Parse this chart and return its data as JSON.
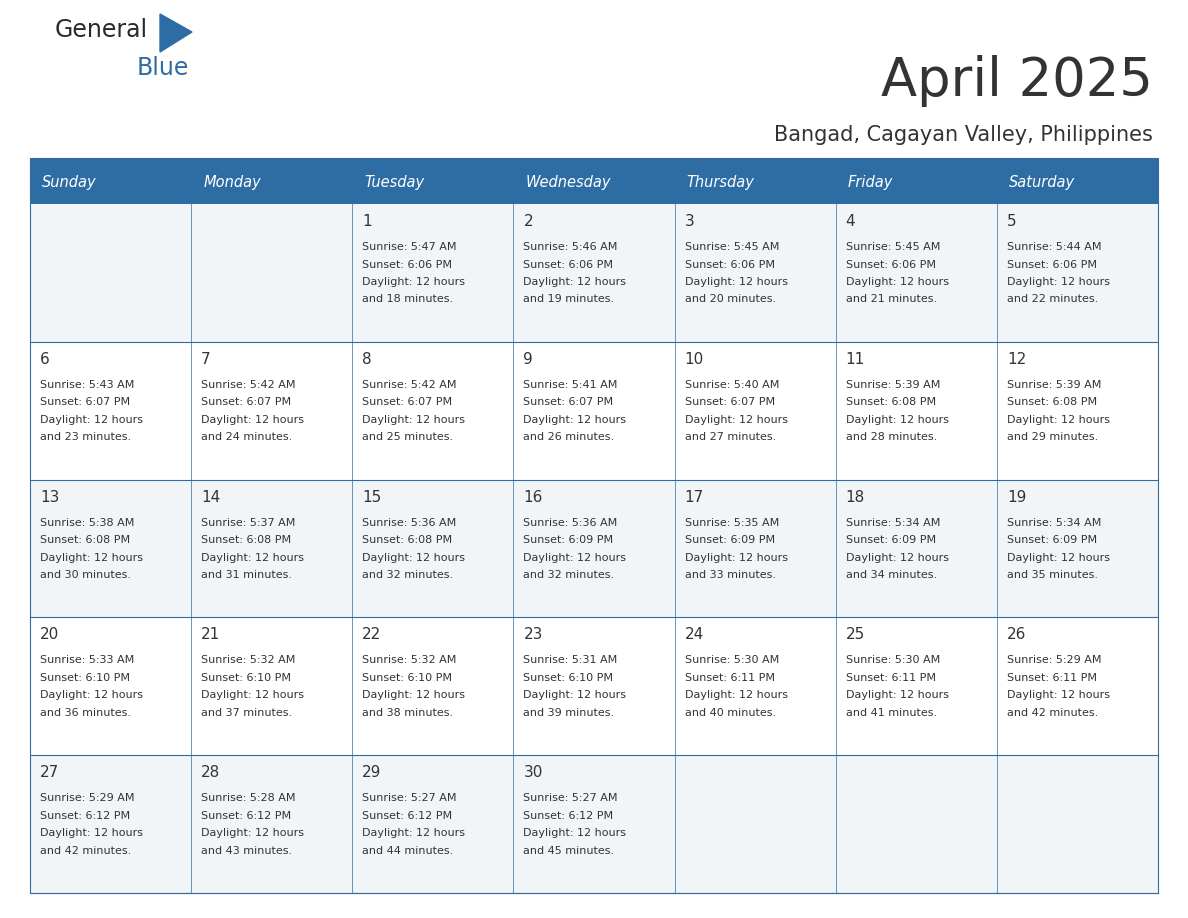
{
  "title": "April 2025",
  "subtitle": "Bangad, Cagayan Valley, Philippines",
  "header_color": "#2E6DA4",
  "header_text_color": "#FFFFFF",
  "cell_bg_even": "#F2F5F8",
  "cell_bg_odd": "#FFFFFF",
  "border_color": "#2E6DA4",
  "text_color": "#333333",
  "days_of_week": [
    "Sunday",
    "Monday",
    "Tuesday",
    "Wednesday",
    "Thursday",
    "Friday",
    "Saturday"
  ],
  "calendar_data": [
    [
      {
        "day": "",
        "sunrise": "",
        "sunset": "",
        "daylight_min": ""
      },
      {
        "day": "",
        "sunrise": "",
        "sunset": "",
        "daylight_min": ""
      },
      {
        "day": "1",
        "sunrise": "5:47 AM",
        "sunset": "6:06 PM",
        "daylight_min": "18 minutes."
      },
      {
        "day": "2",
        "sunrise": "5:46 AM",
        "sunset": "6:06 PM",
        "daylight_min": "19 minutes."
      },
      {
        "day": "3",
        "sunrise": "5:45 AM",
        "sunset": "6:06 PM",
        "daylight_min": "20 minutes."
      },
      {
        "day": "4",
        "sunrise": "5:45 AM",
        "sunset": "6:06 PM",
        "daylight_min": "21 minutes."
      },
      {
        "day": "5",
        "sunrise": "5:44 AM",
        "sunset": "6:06 PM",
        "daylight_min": "22 minutes."
      }
    ],
    [
      {
        "day": "6",
        "sunrise": "5:43 AM",
        "sunset": "6:07 PM",
        "daylight_min": "23 minutes."
      },
      {
        "day": "7",
        "sunrise": "5:42 AM",
        "sunset": "6:07 PM",
        "daylight_min": "24 minutes."
      },
      {
        "day": "8",
        "sunrise": "5:42 AM",
        "sunset": "6:07 PM",
        "daylight_min": "25 minutes."
      },
      {
        "day": "9",
        "sunrise": "5:41 AM",
        "sunset": "6:07 PM",
        "daylight_min": "26 minutes."
      },
      {
        "day": "10",
        "sunrise": "5:40 AM",
        "sunset": "6:07 PM",
        "daylight_min": "27 minutes."
      },
      {
        "day": "11",
        "sunrise": "5:39 AM",
        "sunset": "6:08 PM",
        "daylight_min": "28 minutes."
      },
      {
        "day": "12",
        "sunrise": "5:39 AM",
        "sunset": "6:08 PM",
        "daylight_min": "29 minutes."
      }
    ],
    [
      {
        "day": "13",
        "sunrise": "5:38 AM",
        "sunset": "6:08 PM",
        "daylight_min": "30 minutes."
      },
      {
        "day": "14",
        "sunrise": "5:37 AM",
        "sunset": "6:08 PM",
        "daylight_min": "31 minutes."
      },
      {
        "day": "15",
        "sunrise": "5:36 AM",
        "sunset": "6:08 PM",
        "daylight_min": "32 minutes."
      },
      {
        "day": "16",
        "sunrise": "5:36 AM",
        "sunset": "6:09 PM",
        "daylight_min": "32 minutes."
      },
      {
        "day": "17",
        "sunrise": "5:35 AM",
        "sunset": "6:09 PM",
        "daylight_min": "33 minutes."
      },
      {
        "day": "18",
        "sunrise": "5:34 AM",
        "sunset": "6:09 PM",
        "daylight_min": "34 minutes."
      },
      {
        "day": "19",
        "sunrise": "5:34 AM",
        "sunset": "6:09 PM",
        "daylight_min": "35 minutes."
      }
    ],
    [
      {
        "day": "20",
        "sunrise": "5:33 AM",
        "sunset": "6:10 PM",
        "daylight_min": "36 minutes."
      },
      {
        "day": "21",
        "sunrise": "5:32 AM",
        "sunset": "6:10 PM",
        "daylight_min": "37 minutes."
      },
      {
        "day": "22",
        "sunrise": "5:32 AM",
        "sunset": "6:10 PM",
        "daylight_min": "38 minutes."
      },
      {
        "day": "23",
        "sunrise": "5:31 AM",
        "sunset": "6:10 PM",
        "daylight_min": "39 minutes."
      },
      {
        "day": "24",
        "sunrise": "5:30 AM",
        "sunset": "6:11 PM",
        "daylight_min": "40 minutes."
      },
      {
        "day": "25",
        "sunrise": "5:30 AM",
        "sunset": "6:11 PM",
        "daylight_min": "41 minutes."
      },
      {
        "day": "26",
        "sunrise": "5:29 AM",
        "sunset": "6:11 PM",
        "daylight_min": "42 minutes."
      }
    ],
    [
      {
        "day": "27",
        "sunrise": "5:29 AM",
        "sunset": "6:12 PM",
        "daylight_min": "42 minutes."
      },
      {
        "day": "28",
        "sunrise": "5:28 AM",
        "sunset": "6:12 PM",
        "daylight_min": "43 minutes."
      },
      {
        "day": "29",
        "sunrise": "5:27 AM",
        "sunset": "6:12 PM",
        "daylight_min": "44 minutes."
      },
      {
        "day": "30",
        "sunrise": "5:27 AM",
        "sunset": "6:12 PM",
        "daylight_min": "45 minutes."
      },
      {
        "day": "",
        "sunrise": "",
        "sunset": "",
        "daylight_min": ""
      },
      {
        "day": "",
        "sunrise": "",
        "sunset": "",
        "daylight_min": ""
      },
      {
        "day": "",
        "sunrise": "",
        "sunset": "",
        "daylight_min": ""
      }
    ]
  ],
  "logo_text1": "General",
  "logo_text2": "Blue",
  "logo_color1": "#2a2a2a",
  "logo_color2": "#2E6DA4",
  "figwidth": 11.88,
  "figheight": 9.18,
  "dpi": 100
}
